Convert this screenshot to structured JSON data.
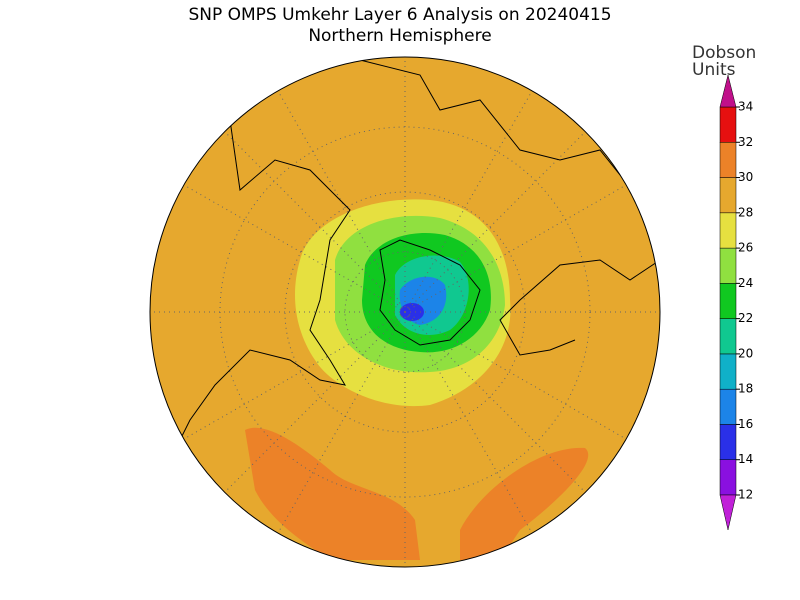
{
  "header": {
    "title": "SNP OMPS Umkehr Layer 6 Analysis on 20240415",
    "subtitle": "Northern Hemisphere"
  },
  "colorbar": {
    "label": [
      "Dobson",
      "Units"
    ],
    "ticks": [
      12,
      14,
      16,
      18,
      20,
      22,
      24,
      26,
      28,
      30,
      32,
      34
    ],
    "colors": [
      "#8a10e0",
      "#2a30e8",
      "#1c84e8",
      "#10b0c8",
      "#10c890",
      "#10c820",
      "#90e040",
      "#e6e040",
      "#e6a82e",
      "#ec8228",
      "#e61010"
    ],
    "under_color": "#c020d8",
    "over_color": "#c0108a"
  }
}
